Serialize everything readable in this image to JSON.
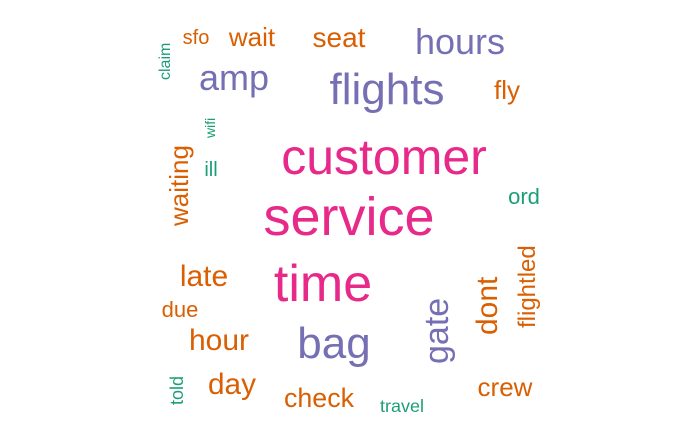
{
  "chart_data": {
    "type": "wordcloud",
    "title": "",
    "palette": {
      "magenta": "#e7298a",
      "purple": "#7570b3",
      "orange": "#d95f02",
      "green": "#1b9e77"
    },
    "words": [
      {
        "text": "service",
        "color": "magenta",
        "rotate": 0
      },
      {
        "text": "customer",
        "color": "magenta",
        "rotate": 0
      },
      {
        "text": "time",
        "color": "magenta",
        "rotate": 0
      },
      {
        "text": "flights",
        "color": "purple",
        "rotate": 0
      },
      {
        "text": "bag",
        "color": "purple",
        "rotate": 0
      },
      {
        "text": "gate",
        "color": "purple",
        "rotate": -90
      },
      {
        "text": "amp",
        "color": "purple",
        "rotate": 0
      },
      {
        "text": "hours",
        "color": "purple",
        "rotate": 0
      },
      {
        "text": "dont",
        "color": "orange",
        "rotate": -90
      },
      {
        "text": "hour",
        "color": "orange",
        "rotate": 0
      },
      {
        "text": "late",
        "color": "orange",
        "rotate": 0
      },
      {
        "text": "waiting",
        "color": "orange",
        "rotate": -90
      },
      {
        "text": "flightled",
        "color": "orange",
        "rotate": -90
      },
      {
        "text": "seat",
        "color": "orange",
        "rotate": 0
      },
      {
        "text": "day",
        "color": "orange",
        "rotate": 0
      },
      {
        "text": "check",
        "color": "orange",
        "rotate": 0
      },
      {
        "text": "crew",
        "color": "orange",
        "rotate": 0
      },
      {
        "text": "wait",
        "color": "orange",
        "rotate": 0
      },
      {
        "text": "fly",
        "color": "orange",
        "rotate": 0
      },
      {
        "text": "due",
        "color": "orange",
        "rotate": 0
      },
      {
        "text": "sfo",
        "color": "orange",
        "rotate": 0
      },
      {
        "text": "ord",
        "color": "green",
        "rotate": 0
      },
      {
        "text": "told",
        "color": "green",
        "rotate": -90
      },
      {
        "text": "travel",
        "color": "green",
        "rotate": 0
      },
      {
        "text": "ill",
        "color": "green",
        "rotate": 0
      },
      {
        "text": "wifi",
        "color": "green",
        "rotate": -90
      },
      {
        "text": "claim",
        "color": "green",
        "rotate": -90
      }
    ]
  }
}
